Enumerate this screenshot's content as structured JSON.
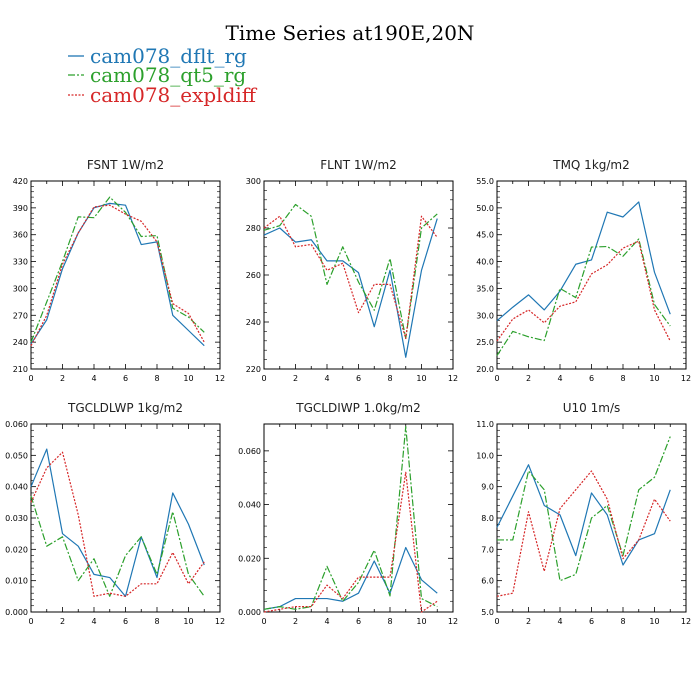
{
  "figure": {
    "title": "Time Series at190E,20N"
  },
  "legend": [
    {
      "name": "cam078_dflt_rg",
      "color": "#1f77b4",
      "dash": "solid"
    },
    {
      "name": "cam078_qt5_rg",
      "color": "#2ca02c",
      "dash": "dashdot"
    },
    {
      "name": "cam078_expldiff",
      "color": "#d62728",
      "dash": "dotted"
    }
  ],
  "chart_data": [
    {
      "type": "line",
      "title": "FSNT   1W/m2",
      "x": [
        0,
        1,
        2,
        3,
        4,
        5,
        6,
        7,
        8,
        9,
        10,
        11
      ],
      "xlim": [
        0,
        12
      ],
      "xticks": [
        0,
        2,
        4,
        6,
        8,
        10,
        12
      ],
      "ylim": [
        210,
        420
      ],
      "yticks": [
        210,
        240,
        270,
        300,
        330,
        360,
        390,
        420
      ],
      "ytick_labels": [
        "210",
        "240",
        "270",
        "300",
        "330",
        "360",
        "390",
        "420"
      ],
      "series": [
        {
          "name": "cam078_dflt_rg",
          "values": [
            238,
            265,
            322,
            362,
            390,
            395,
            393,
            349,
            352,
            270,
            253,
            236
          ]
        },
        {
          "name": "cam078_qt5_rg",
          "values": [
            240,
            285,
            330,
            380,
            379,
            402,
            385,
            358,
            359,
            278,
            268,
            251
          ]
        },
        {
          "name": "cam078_expldiff",
          "values": [
            236,
            270,
            327,
            362,
            391,
            393,
            383,
            375,
            352,
            283,
            272,
            240
          ]
        }
      ]
    },
    {
      "type": "line",
      "title": "FLNT   1W/m2",
      "x": [
        0,
        1,
        2,
        3,
        4,
        5,
        6,
        7,
        8,
        9,
        10,
        11
      ],
      "xlim": [
        0,
        12
      ],
      "xticks": [
        0,
        2,
        4,
        6,
        8,
        10,
        12
      ],
      "ylim": [
        220,
        300
      ],
      "yticks": [
        220,
        240,
        260,
        280,
        300
      ],
      "ytick_labels": [
        "220",
        "240",
        "260",
        "280",
        "300"
      ],
      "series": [
        {
          "name": "cam078_dflt_rg",
          "values": [
            277,
            280,
            274,
            275,
            266,
            266,
            261,
            238,
            262,
            225,
            262,
            284
          ]
        },
        {
          "name": "cam078_qt5_rg",
          "values": [
            279,
            281,
            290,
            285,
            256,
            272,
            257,
            245,
            267,
            233,
            280,
            286
          ]
        },
        {
          "name": "cam078_expldiff",
          "values": [
            280,
            285,
            272,
            273,
            262,
            265,
            244,
            256,
            256,
            233,
            285,
            276
          ]
        }
      ]
    },
    {
      "type": "line",
      "title": "TMQ   1kg/m2",
      "x": [
        0,
        1,
        2,
        3,
        4,
        5,
        6,
        7,
        8,
        9,
        10,
        11
      ],
      "xlim": [
        0,
        12
      ],
      "xticks": [
        0,
        2,
        4,
        6,
        8,
        10,
        12
      ],
      "ylim": [
        20,
        55
      ],
      "yticks": [
        20,
        25,
        30,
        35,
        40,
        45,
        50,
        55
      ],
      "ytick_labels": [
        "20.0",
        "25.0",
        "30.0",
        "35.0",
        "40.0",
        "45.0",
        "50.0",
        "55.0"
      ],
      "series": [
        {
          "name": "cam078_dflt_rg",
          "values": [
            29.0,
            31.5,
            33.8,
            31.0,
            34.5,
            39.5,
            40.3,
            49.2,
            48.3,
            51.1,
            38.0,
            30.2
          ]
        },
        {
          "name": "cam078_qt5_rg",
          "values": [
            22.5,
            27.0,
            26.0,
            25.3,
            35.0,
            33.3,
            42.7,
            42.8,
            41.0,
            44.2,
            32.0,
            28.0
          ]
        },
        {
          "name": "cam078_expldiff",
          "values": [
            25.2,
            29.3,
            31.0,
            28.6,
            31.7,
            32.5,
            37.7,
            39.4,
            42.5,
            43.8,
            31.0,
            25.2
          ]
        }
      ]
    },
    {
      "type": "line",
      "title": "TGCLDLWP   1kg/m2",
      "x": [
        0,
        1,
        2,
        3,
        4,
        5,
        6,
        7,
        8,
        9,
        10,
        11
      ],
      "xlim": [
        0,
        12
      ],
      "xticks": [
        0,
        2,
        4,
        6,
        8,
        10,
        12
      ],
      "ylim": [
        0,
        0.06
      ],
      "yticks": [
        0,
        0.01,
        0.02,
        0.03,
        0.04,
        0.05,
        0.06
      ],
      "ytick_labels": [
        "0.000",
        "0.010",
        "0.020",
        "0.030",
        "0.040",
        "0.050",
        "0.060"
      ],
      "series": [
        {
          "name": "cam078_dflt_rg",
          "values": [
            0.04,
            0.052,
            0.025,
            0.021,
            0.012,
            0.011,
            0.005,
            0.024,
            0.011,
            0.038,
            0.028,
            0.015
          ]
        },
        {
          "name": "cam078_qt5_rg",
          "values": [
            0.037,
            0.021,
            0.024,
            0.01,
            0.017,
            0.005,
            0.018,
            0.024,
            0.012,
            0.032,
            0.012,
            0.005
          ]
        },
        {
          "name": "cam078_expldiff",
          "values": [
            0.035,
            0.046,
            0.051,
            0.031,
            0.005,
            0.006,
            0.005,
            0.009,
            0.009,
            0.019,
            0.009,
            0.016
          ]
        }
      ]
    },
    {
      "type": "line",
      "title": "TGCLDIWP   1.0kg/m2",
      "x": [
        0,
        1,
        2,
        3,
        4,
        5,
        6,
        7,
        8,
        9,
        10,
        11
      ],
      "xlim": [
        0,
        12
      ],
      "xticks": [
        0,
        2,
        4,
        6,
        8,
        10,
        12
      ],
      "ylim": [
        0,
        0.07
      ],
      "yticks": [
        0,
        0.02,
        0.04,
        0.06
      ],
      "ytick_labels": [
        "0.000",
        "0.020",
        "0.040",
        "0.060"
      ],
      "series": [
        {
          "name": "cam078_dflt_rg",
          "values": [
            0.001,
            0.002,
            0.005,
            0.005,
            0.005,
            0.004,
            0.007,
            0.019,
            0.007,
            0.024,
            0.012,
            0.007
          ]
        },
        {
          "name": "cam078_qt5_rg",
          "values": [
            0.001,
            0.002,
            0.001,
            0.002,
            0.017,
            0.004,
            0.011,
            0.023,
            0.006,
            0.069,
            0.005,
            0.002
          ]
        },
        {
          "name": "cam078_expldiff",
          "values": [
            0.0,
            0.001,
            0.002,
            0.002,
            0.01,
            0.005,
            0.013,
            0.013,
            0.013,
            0.052,
            0.0,
            0.004
          ]
        }
      ]
    },
    {
      "type": "line",
      "title": "U10   1m/s",
      "x": [
        0,
        1,
        2,
        3,
        4,
        5,
        6,
        7,
        8,
        9,
        10,
        11
      ],
      "xlim": [
        0,
        12
      ],
      "xticks": [
        0,
        2,
        4,
        6,
        8,
        10,
        12
      ],
      "ylim": [
        5,
        11
      ],
      "yticks": [
        5,
        6,
        7,
        8,
        9,
        10,
        11
      ],
      "ytick_labels": [
        "5.0",
        "6.0",
        "7.0",
        "8.0",
        "9.0",
        "10.0",
        "11.0"
      ],
      "series": [
        {
          "name": "cam078_dflt_rg",
          "values": [
            7.7,
            8.7,
            9.7,
            8.4,
            8.1,
            6.8,
            8.8,
            8.1,
            6.5,
            7.3,
            7.5,
            8.9
          ]
        },
        {
          "name": "cam078_qt5_rg",
          "values": [
            7.3,
            7.3,
            9.5,
            8.9,
            6.0,
            6.2,
            8.0,
            8.4,
            6.8,
            8.9,
            9.3,
            10.6
          ]
        },
        {
          "name": "cam078_expldiff",
          "values": [
            5.5,
            5.6,
            8.2,
            6.3,
            8.3,
            8.9,
            9.5,
            8.6,
            6.7,
            7.3,
            8.6,
            7.9
          ]
        }
      ]
    }
  ]
}
